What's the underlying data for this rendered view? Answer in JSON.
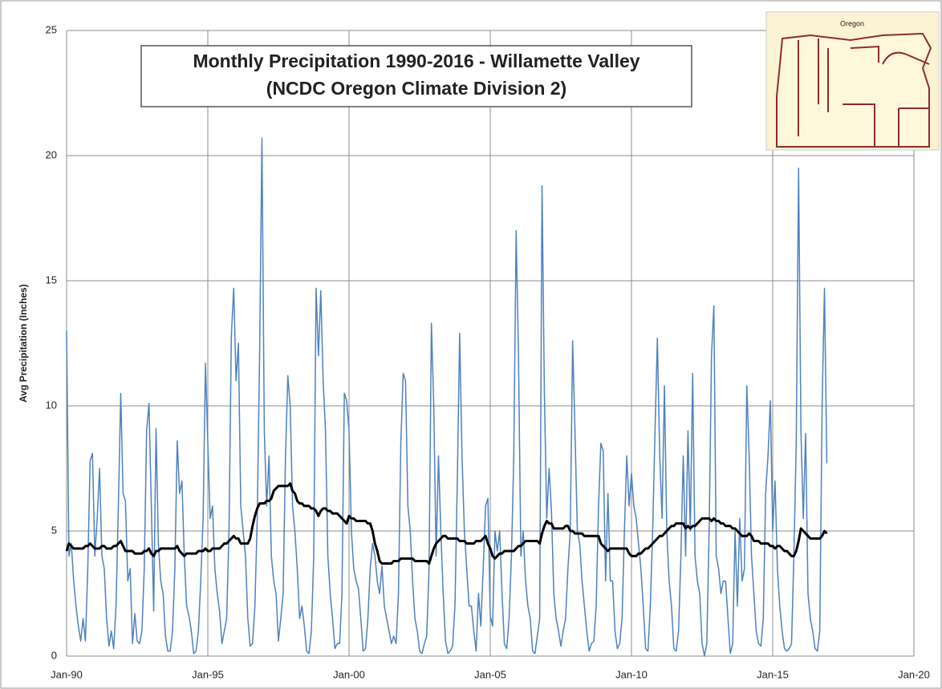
{
  "chart_data": {
    "type": "line",
    "title": "Monthly Precipitation 1990-2016 - Willamette Valley",
    "subtitle": "(NCDC Oregon Climate Division 2)",
    "y_label": "Avg Precipitation (Inches)",
    "inset_map_title": "Oregon",
    "grid": true,
    "ylim": [
      0,
      25
    ],
    "yticks": [
      0,
      5,
      10,
      15,
      20,
      25
    ],
    "xlim": [
      "1990-01",
      "2020-01"
    ],
    "xticks": [
      {
        "value": "1990-01",
        "label": "Jan-90"
      },
      {
        "value": "1995-01",
        "label": "Jan-95"
      },
      {
        "value": "2000-01",
        "label": "Jan-00"
      },
      {
        "value": "2005-01",
        "label": "Jan-05"
      },
      {
        "value": "2010-01",
        "label": "Jan-10"
      },
      {
        "value": "2015-01",
        "label": "Jan-15"
      },
      {
        "value": "2020-01",
        "label": "Jan-20"
      }
    ],
    "x": [
      "1990-01",
      "1990-02",
      "1990-03",
      "1990-04",
      "1990-05",
      "1990-06",
      "1990-07",
      "1990-08",
      "1990-09",
      "1990-10",
      "1990-11",
      "1990-12",
      "1991-01",
      "1991-02",
      "1991-03",
      "1991-04",
      "1991-05",
      "1991-06",
      "1991-07",
      "1991-08",
      "1991-09",
      "1991-10",
      "1991-11",
      "1991-12",
      "1992-01",
      "1992-02",
      "1992-03",
      "1992-04",
      "1992-05",
      "1992-06",
      "1992-07",
      "1992-08",
      "1992-09",
      "1992-10",
      "1992-11",
      "1992-12",
      "1993-01",
      "1993-02",
      "1993-03",
      "1993-04",
      "1993-05",
      "1993-06",
      "1993-07",
      "1993-08",
      "1993-09",
      "1993-10",
      "1993-11",
      "1993-12",
      "1994-01",
      "1994-02",
      "1994-03",
      "1994-04",
      "1994-05",
      "1994-06",
      "1994-07",
      "1994-08",
      "1994-09",
      "1994-10",
      "1994-11",
      "1994-12",
      "1995-01",
      "1995-02",
      "1995-03",
      "1995-04",
      "1995-05",
      "1995-06",
      "1995-07",
      "1995-08",
      "1995-09",
      "1995-10",
      "1995-11",
      "1995-12",
      "1996-01",
      "1996-02",
      "1996-03",
      "1996-04",
      "1996-05",
      "1996-06",
      "1996-07",
      "1996-08",
      "1996-09",
      "1996-10",
      "1996-11",
      "1996-12",
      "1997-01",
      "1997-02",
      "1997-03",
      "1997-04",
      "1997-05",
      "1997-06",
      "1997-07",
      "1997-08",
      "1997-09",
      "1997-10",
      "1997-11",
      "1997-12",
      "1998-01",
      "1998-02",
      "1998-03",
      "1998-04",
      "1998-05",
      "1998-06",
      "1998-07",
      "1998-08",
      "1998-09",
      "1998-10",
      "1998-11",
      "1998-12",
      "1999-01",
      "1999-02",
      "1999-03",
      "1999-04",
      "1999-05",
      "1999-06",
      "1999-07",
      "1999-08",
      "1999-09",
      "1999-10",
      "1999-11",
      "1999-12",
      "2000-01",
      "2000-02",
      "2000-03",
      "2000-04",
      "2000-05",
      "2000-06",
      "2000-07",
      "2000-08",
      "2000-09",
      "2000-10",
      "2000-11",
      "2000-12",
      "2001-01",
      "2001-02",
      "2001-03",
      "2001-04",
      "2001-05",
      "2001-06",
      "2001-07",
      "2001-08",
      "2001-09",
      "2001-10",
      "2001-11",
      "2001-12",
      "2002-01",
      "2002-02",
      "2002-03",
      "2002-04",
      "2002-05",
      "2002-06",
      "2002-07",
      "2002-08",
      "2002-09",
      "2002-10",
      "2002-11",
      "2002-12",
      "2003-01",
      "2003-02",
      "2003-03",
      "2003-04",
      "2003-05",
      "2003-06",
      "2003-07",
      "2003-08",
      "2003-09",
      "2003-10",
      "2003-11",
      "2003-12",
      "2004-01",
      "2004-02",
      "2004-03",
      "2004-04",
      "2004-05",
      "2004-06",
      "2004-07",
      "2004-08",
      "2004-09",
      "2004-10",
      "2004-11",
      "2004-12",
      "2005-01",
      "2005-02",
      "2005-03",
      "2005-04",
      "2005-05",
      "2005-06",
      "2005-07",
      "2005-08",
      "2005-09",
      "2005-10",
      "2005-11",
      "2005-12",
      "2006-01",
      "2006-02",
      "2006-03",
      "2006-04",
      "2006-05",
      "2006-06",
      "2006-07",
      "2006-08",
      "2006-09",
      "2006-10",
      "2006-11",
      "2006-12",
      "2007-01",
      "2007-02",
      "2007-03",
      "2007-04",
      "2007-05",
      "2007-06",
      "2007-07",
      "2007-08",
      "2007-09",
      "2007-10",
      "2007-11",
      "2007-12",
      "2008-01",
      "2008-02",
      "2008-03",
      "2008-04",
      "2008-05",
      "2008-06",
      "2008-07",
      "2008-08",
      "2008-09",
      "2008-10",
      "2008-11",
      "2008-12",
      "2009-01",
      "2009-02",
      "2009-03",
      "2009-04",
      "2009-05",
      "2009-06",
      "2009-07",
      "2009-08",
      "2009-09",
      "2009-10",
      "2009-11",
      "2009-12",
      "2010-01",
      "2010-02",
      "2010-03",
      "2010-04",
      "2010-05",
      "2010-06",
      "2010-07",
      "2010-08",
      "2010-09",
      "2010-10",
      "2010-11",
      "2010-12",
      "2011-01",
      "2011-02",
      "2011-03",
      "2011-04",
      "2011-05",
      "2011-06",
      "2011-07",
      "2011-08",
      "2011-09",
      "2011-10",
      "2011-11",
      "2011-12",
      "2012-01",
      "2012-02",
      "2012-03",
      "2012-04",
      "2012-05",
      "2012-06",
      "2012-07",
      "2012-08",
      "2012-09",
      "2012-10",
      "2012-11",
      "2012-12",
      "2013-01",
      "2013-02",
      "2013-03",
      "2013-04",
      "2013-05",
      "2013-06",
      "2013-07",
      "2013-08",
      "2013-09",
      "2013-10",
      "2013-11",
      "2013-12",
      "2014-01",
      "2014-02",
      "2014-03",
      "2014-04",
      "2014-05",
      "2014-06",
      "2014-07",
      "2014-08",
      "2014-09",
      "2014-10",
      "2014-11",
      "2014-12",
      "2015-01",
      "2015-02",
      "2015-03",
      "2015-04",
      "2015-05",
      "2015-06",
      "2015-07",
      "2015-08",
      "2015-09",
      "2015-10",
      "2015-11",
      "2015-12",
      "2016-01",
      "2016-02",
      "2016-03",
      "2016-04",
      "2016-05",
      "2016-06",
      "2016-07",
      "2016-08",
      "2016-09",
      "2016-10",
      "2016-11",
      "2016-12"
    ],
    "series": [
      {
        "color": "#4f81bd",
        "width": 1.5,
        "values": [
          13,
          4,
          4.5,
          3,
          2,
          1.2,
          0.6,
          1.5,
          0.6,
          3.5,
          7.8,
          8.1,
          4,
          5.5,
          7.5,
          4,
          3.5,
          1.5,
          0.4,
          1,
          0.3,
          2,
          6,
          10.5,
          6.5,
          6.2,
          3,
          3.5,
          0.5,
          1.7,
          0.6,
          0.5,
          1,
          3.5,
          9,
          10.1,
          6,
          1.8,
          9.1,
          4.5,
          3,
          2.5,
          0.8,
          0.2,
          0.2,
          1,
          3.5,
          8.6,
          6.5,
          7,
          4,
          2,
          1.6,
          1,
          0.1,
          0.2,
          1,
          3,
          5.5,
          11.7,
          8.5,
          5.5,
          6,
          3.5,
          2.5,
          1.8,
          0.5,
          1,
          1.5,
          5,
          12.8,
          14.7,
          11,
          12.5,
          6,
          5,
          4,
          1.5,
          0.4,
          0.5,
          2,
          5.5,
          12,
          20.7,
          9,
          6,
          8,
          4,
          3,
          2.5,
          0.6,
          1.5,
          2.5,
          8,
          11.2,
          10,
          6,
          5,
          3.5,
          1.5,
          2,
          1.2,
          0.2,
          0.1,
          1,
          4,
          14.7,
          12,
          14.6,
          11,
          9,
          4,
          2.5,
          1.5,
          0.3,
          0.5,
          0.5,
          2.5,
          10.5,
          10.2,
          9,
          5,
          3.5,
          3,
          2.7,
          1.5,
          0.2,
          0.3,
          1.5,
          3.5,
          4.5,
          4,
          3,
          2.5,
          3.6,
          2,
          1.5,
          1,
          0.5,
          0.8,
          0.5,
          2.5,
          8.5,
          11.3,
          11,
          6,
          5,
          3,
          1.5,
          1,
          0.2,
          0.1,
          0.5,
          0.8,
          3.5,
          13.3,
          10,
          4,
          8,
          5,
          2.5,
          0.6,
          0.1,
          0.2,
          0.4,
          2,
          7,
          12.9,
          8,
          5,
          3.5,
          2,
          2,
          1,
          0.2,
          2.5,
          1.2,
          3.5,
          6,
          6.3,
          1.6,
          1.2,
          5,
          4.2,
          5,
          2.5,
          0.5,
          0.3,
          1.5,
          4,
          8,
          17,
          12,
          4,
          5,
          3,
          2,
          1.5,
          0.2,
          0.1,
          0.8,
          1.5,
          18.8,
          10.5,
          5.5,
          7.5,
          5.8,
          2.5,
          1.5,
          1,
          0.4,
          1,
          1.5,
          3.5,
          5,
          12.6,
          9,
          5,
          4.5,
          3,
          2,
          1,
          0.2,
          0.5,
          0.6,
          2,
          6,
          8.5,
          8.2,
          3,
          6.5,
          3,
          3,
          1,
          0.3,
          0.5,
          1.5,
          5,
          8,
          6,
          7.3,
          6,
          5.5,
          4.5,
          3.5,
          2,
          0.3,
          0.2,
          2,
          5,
          9,
          12.7,
          8,
          5.5,
          10.8,
          5,
          3,
          2,
          0.3,
          0.2,
          1,
          4,
          8,
          4,
          9,
          5,
          11.3,
          4,
          3,
          2.5,
          0.5,
          0,
          0.5,
          5,
          12,
          14,
          4,
          3.5,
          2.5,
          3,
          3,
          1.5,
          0.1,
          0.5,
          5,
          2,
          5.5,
          3,
          3.5,
          10.8,
          8,
          4,
          2.5,
          1,
          0.5,
          0.4,
          1.5,
          6.5,
          8,
          10.2,
          5,
          7,
          3.5,
          2,
          1,
          0.3,
          0.2,
          0.3,
          0.5,
          4,
          8.5,
          19.5,
          9,
          5.5,
          8.9,
          2.5,
          1.5,
          1,
          0.3,
          0.2,
          1,
          10,
          14.7,
          7.7
        ]
      },
      {
        "color": "#000000",
        "width": 3,
        "values": [
          4.2,
          4.5,
          4.4,
          4.3,
          4.3,
          4.3,
          4.3,
          4.3,
          4.4,
          4.4,
          4.5,
          4.4,
          4.3,
          4.3,
          4.3,
          4.4,
          4.4,
          4.3,
          4.3,
          4.3,
          4.4,
          4.4,
          4.5,
          4.6,
          4.4,
          4.2,
          4.2,
          4.2,
          4.2,
          4.1,
          4.1,
          4.1,
          4.1,
          4.2,
          4.2,
          4.3,
          4.1,
          4.0,
          4.2,
          4.2,
          4.3,
          4.3,
          4.3,
          4.3,
          4.3,
          4.3,
          4.3,
          4.4,
          4.2,
          4.1,
          4.0,
          4.1,
          4.1,
          4.1,
          4.1,
          4.1,
          4.2,
          4.2,
          4.2,
          4.3,
          4.2,
          4.2,
          4.3,
          4.3,
          4.3,
          4.3,
          4.4,
          4.5,
          4.5,
          4.6,
          4.7,
          4.8,
          4.7,
          4.7,
          4.5,
          4.5,
          4.5,
          4.5,
          4.7,
          5.2,
          5.6,
          5.9,
          6.1,
          6.1,
          6.1,
          6.2,
          6.2,
          6.3,
          6.6,
          6.7,
          6.8,
          6.8,
          6.8,
          6.8,
          6.8,
          6.9,
          6.6,
          6.5,
          6.2,
          6.1,
          6.1,
          6.0,
          6.0,
          6.0,
          5.9,
          5.9,
          5.8,
          5.6,
          5.8,
          5.9,
          5.9,
          5.8,
          5.8,
          5.7,
          5.7,
          5.7,
          5.6,
          5.5,
          5.4,
          5.3,
          5.6,
          5.5,
          5.5,
          5.4,
          5.4,
          5.4,
          5.4,
          5.4,
          5.3,
          5.3,
          5.0,
          4.5,
          4.2,
          3.8,
          3.7,
          3.7,
          3.7,
          3.7,
          3.7,
          3.8,
          3.8,
          3.8,
          3.9,
          3.9,
          3.9,
          3.9,
          3.9,
          3.9,
          3.8,
          3.8,
          3.8,
          3.8,
          3.8,
          3.8,
          3.7,
          4.0,
          4.3,
          4.5,
          4.6,
          4.7,
          4.8,
          4.8,
          4.7,
          4.7,
          4.7,
          4.7,
          4.7,
          4.6,
          4.6,
          4.6,
          4.5,
          4.5,
          4.5,
          4.5,
          4.6,
          4.6,
          4.6,
          4.7,
          4.8,
          4.5,
          4.3,
          4.0,
          3.9,
          4.0,
          4.1,
          4.1,
          4.2,
          4.2,
          4.2,
          4.2,
          4.2,
          4.3,
          4.4,
          4.4,
          4.5,
          4.6,
          4.6,
          4.6,
          4.6,
          4.6,
          4.6,
          4.5,
          4.9,
          5.2,
          5.4,
          5.3,
          5.3,
          5.1,
          5.1,
          5.1,
          5.1,
          5.1,
          5.2,
          5.2,
          5.0,
          5.0,
          4.9,
          4.9,
          4.9,
          4.9,
          4.8,
          4.8,
          4.8,
          4.8,
          4.8,
          4.8,
          4.8,
          4.5,
          4.4,
          4.3,
          4.2,
          4.3,
          4.3,
          4.3,
          4.3,
          4.3,
          4.3,
          4.3,
          4.3,
          4.1,
          4.0,
          4.0,
          4.0,
          4.1,
          4.1,
          4.2,
          4.3,
          4.3,
          4.4,
          4.5,
          4.6,
          4.7,
          4.8,
          4.8,
          4.9,
          5.0,
          5.1,
          5.2,
          5.2,
          5.3,
          5.3,
          5.3,
          5.3,
          5.1,
          5.2,
          5.1,
          5.2,
          5.2,
          5.3,
          5.4,
          5.5,
          5.5,
          5.5,
          5.5,
          5.4,
          5.5,
          5.4,
          5.4,
          5.3,
          5.3,
          5.2,
          5.2,
          5.2,
          5.1,
          5.1,
          5.0,
          4.9,
          4.8,
          4.8,
          4.8,
          4.9,
          4.8,
          4.6,
          4.6,
          4.6,
          4.5,
          4.5,
          4.5,
          4.5,
          4.4,
          4.4,
          4.3,
          4.4,
          4.4,
          4.3,
          4.2,
          4.2,
          4.1,
          4.0,
          4.0,
          4.2,
          4.6,
          5.1,
          5.0,
          4.9,
          4.8,
          4.7,
          4.7,
          4.7,
          4.7,
          4.7,
          4.8,
          5.0,
          4.9
        ]
      }
    ]
  }
}
